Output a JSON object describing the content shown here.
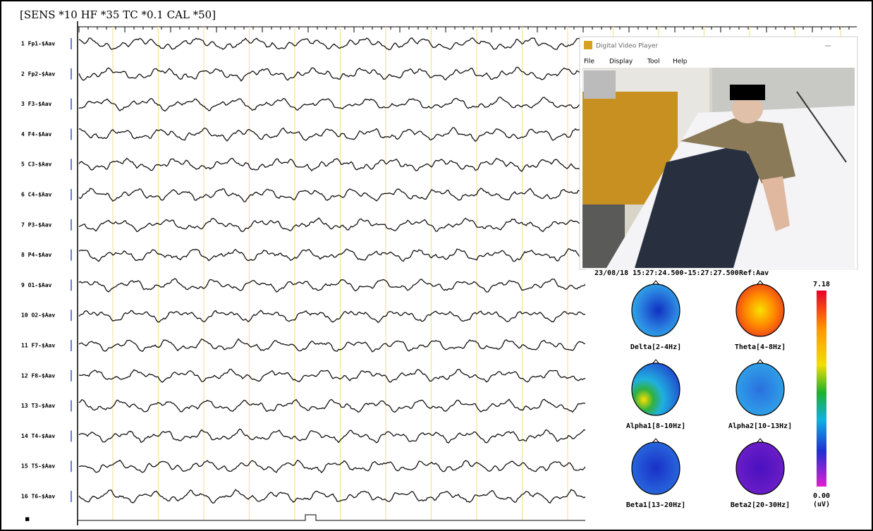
{
  "header": {
    "settings": "[SENS *10  HF *35  TC *0.1  CAL *50]"
  },
  "channels": [
    "1 Fp1-$Aav",
    "2 Fp2-$Aav",
    "3 F3-$Aav",
    "4 F4-$Aav",
    "5 C3-$Aav",
    "6 C4-$Aav",
    "7 P3-$Aav",
    "8 P4-$Aav",
    "9 O1-$Aav",
    "10 O2-$Aav",
    "11 F7-$Aav",
    "12 F8-$Aav",
    "13 T3-$Aav",
    "14 T4-$Aav",
    "15 T5-$Aav",
    "16 T6-$Aav"
  ],
  "video_player": {
    "title": "Digital Video Player",
    "menu": [
      "File",
      "Display",
      "Tool",
      "Help"
    ]
  },
  "topomap": {
    "time_range": "23/08/18 15:27:24.500-15:27:27.500",
    "reference": "Ref:Aav",
    "bands": [
      "Delta[2-4Hz]",
      "Theta[4-8Hz]",
      "Alpha1[8-10Hz]",
      "Alpha2[10-13Hz]",
      "Beta1[13-20Hz]",
      "Beta2[20-30Hz]"
    ],
    "scale_max": "7.18",
    "scale_min": "0.00",
    "unit": "(uV)"
  }
}
